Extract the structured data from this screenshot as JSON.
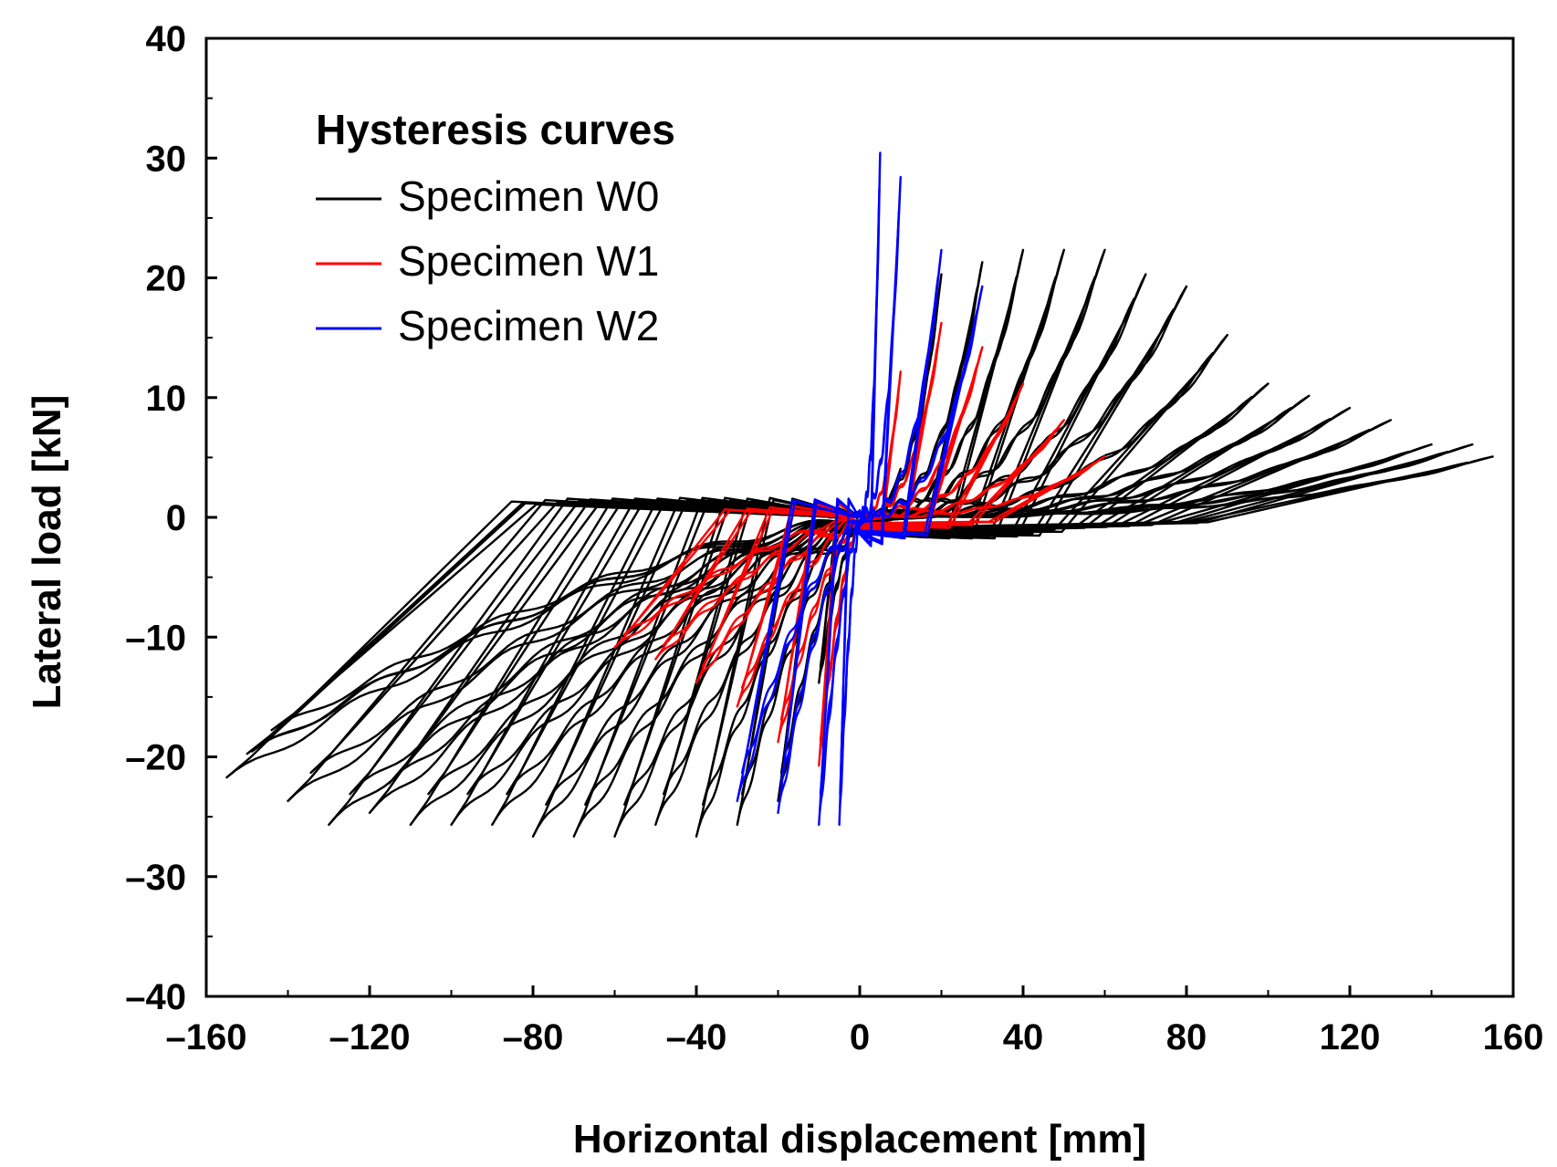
{
  "chart_data": {
    "type": "line",
    "xlabel": "Horizontal displacement [mm]",
    "ylabel": "Lateral load [kN]",
    "xlim": [
      -160,
      160
    ],
    "ylim": [
      -40,
      40
    ],
    "x_ticks": [
      -160,
      -120,
      -80,
      -40,
      0,
      40,
      80,
      120,
      160
    ],
    "x_tick_labels": [
      "–160",
      "–120",
      "–80",
      "–40",
      "0",
      "40",
      "80",
      "120",
      "160"
    ],
    "y_ticks": [
      -40,
      -30,
      -20,
      -10,
      0,
      10,
      20,
      30,
      40
    ],
    "y_tick_labels": [
      "–40",
      "–30",
      "–20",
      "–10",
      "0",
      "10",
      "20",
      "30",
      "40"
    ],
    "grid": false,
    "legend": {
      "title": "Hysteresis curves",
      "position": "top-left"
    },
    "series": [
      {
        "name": "Specimen W0",
        "color": "#000000",
        "amplitudes": [
          10,
          20,
          30,
          40,
          50,
          60,
          70,
          80,
          90,
          100,
          110,
          120,
          130,
          140,
          150,
          155
        ],
        "peak_positive": [
          4,
          20,
          21,
          22,
          22,
          22,
          20,
          19,
          15,
          11,
          10,
          9,
          8,
          6,
          6,
          5
        ],
        "peak_negative": [
          -14,
          -24,
          -26,
          -27,
          -26,
          -27,
          -27,
          -27,
          -26,
          -26,
          -26,
          -25,
          -26,
          -24,
          -20,
          -22
        ]
      },
      {
        "name": "Specimen W1",
        "color": "#ff0000",
        "amplitudes": [
          10,
          20,
          30,
          40,
          50,
          60
        ],
        "peak_positive": [
          12,
          16,
          14,
          11,
          8,
          5
        ],
        "peak_negative": [
          -21,
          -19,
          -16,
          -14,
          -12,
          -11
        ]
      },
      {
        "name": "Specimen W2",
        "color": "#0000ff",
        "amplitudes": [
          5,
          10,
          20,
          30
        ],
        "peak_positive": [
          30,
          28,
          22,
          19
        ],
        "peak_negative": [
          -26,
          -26,
          -25,
          -24
        ]
      }
    ]
  }
}
